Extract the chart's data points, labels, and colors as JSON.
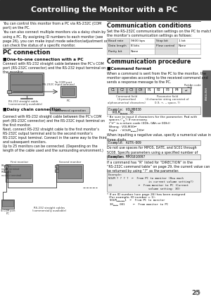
{
  "title": "Controlling the Monitor with a PC",
  "title_bg": "#2d2d2d",
  "title_color": "#ffffff",
  "page_bg": "#f0f0f0",
  "page_number": "25",
  "right_tab_color": "#666666",
  "right_tab_text": "ENGLISH",
  "intro_text": "You can control this monitor from a PC via RS-232C (COM\nport) on the PC.\nYou can also connect multiple monitors via a daisy chain by\nusing a PC. By assigning ID numbers to each monitor (see\npage 26), you can make input mode selection/adjustment or\ncan check the status of a specific monitor.",
  "pc_connection_title": "PC connection",
  "one_to_one_title": "■One-to-one connection with a PC",
  "one_to_one_text": "Connect with RS-232 straight cable between the PC’s COM\nport (RS-232C connector) and the RS-232 input terminal on\nthe monitor.",
  "daisy_chain_title": "■Daisy chain connection...",
  "daisy_chain_badge": "Advanced operation",
  "daisy_chain_text": "Connect with RS-232 straight cable between the PC’s COM\nport (RS-232C connector) and the RS-232C input terminal on\nthe first monitor.\nNext, connect RS-232 straight cable to the first monitor’s\nRS-232C output terminal and to the second monitor’s\nRS-232C input terminal. Connect in the same way to the third\nand subsequent monitors.\nUp to 25 monitors can be connected. (Depending on the\nlength of the cable used and the surrounding environment.)",
  "comm_cond_title": "Communication conditions",
  "comm_cond_intro": "Set the RS-232C communication settings on the PC to match\nthe monitor’s communication settings as follows:",
  "table_rows": [
    [
      "Baud rate",
      "9600 bps",
      "Stop bit",
      "1 bit"
    ],
    [
      "Data length",
      "8 bits",
      "Flow control",
      "None"
    ],
    [
      "Parity bit",
      "None",
      "",
      ""
    ]
  ],
  "comm_proc_title": "Communication procedure",
  "cmd_format_title": "■Command format",
  "cmd_format_text": "When a command is sent from the PC to the monitor, the\nmonitor operates according to the received command and\nsends a response message to the PC.",
  "cmd_boxes": [
    "C1",
    "C2",
    "C3",
    "C4",
    "P1",
    "P2",
    "P3",
    "P4",
    "↵"
  ],
  "return_code_label": "Return code",
  "cmd_field_label": "Command field\n(4 prescribed\nalphanumerical characters)",
  "param_field_label": "Parameter field\n(4 character string consisted of\n0-9, +, -, space, ?)",
  "example1_title": "Example: VOLM0030",
  "example1_line2": "  VOLM␣␣␣␣ 30",
  "note1": "* Be sure to input 4 characters for the parameter. Pad with\n  spaces (\"␣\") if necessary.\n  (\"↵\" is a return code (0Dh, 0Ah or 0Dh))\n  Wrong : VOLM30↵\n  Right   : VOLM␣␣␣⌠30↵",
  "neg_text": "When inputting a negative value, specify a numerical value in\nthree digits.",
  "example2": "Example: AUTR-009",
  "no_space_text": "Do not use spaces for MPOS, DATE, and SC01 through\nSC08. Specify parameters using a specified number of\ncharacters.",
  "example3": "Example: MPOS010097",
  "if_r_text": "If a command has “R” listed for “DIRECTION” in the\n“RS-232C command table” on page 29, the current value can\nbe returned by using “?” as the parameter.",
  "example4_label": "Example:",
  "example4_lines": [
    "VOLM ? ? ? ?  ←  From PC to monitor (How much",
    "                        is current volume setting?)",
    "30                ←  From monitor to PC (Current",
    "                        volume setting: 30)"
  ],
  "note2": "* If an ID number (see page 26) has been assigned\n  (For example, ID number = 1):",
  "id_lines": [
    "VOLM␣␣␣␣␣1  ←  From PC to monitor",
    "30␣␣␣ 001     ←  From monitor to PC"
  ]
}
